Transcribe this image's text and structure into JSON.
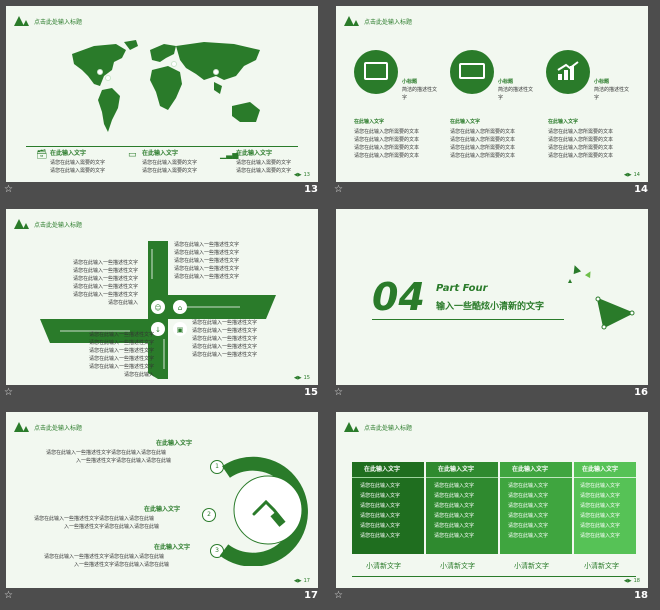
{
  "slide_title": "点击此处输入标题",
  "slides": [
    {
      "num": "13",
      "items": [
        {
          "title": "在此输入文字",
          "line1": "请您在此输入需要的文字",
          "line2": "请您在此输入需要的文字",
          "icon": "id-card-icon"
        },
        {
          "title": "在此输入文字",
          "line1": "请您在此输入需要的文字",
          "line2": "请您在此输入需要的文字",
          "icon": "monitor-icon"
        },
        {
          "title": "在此输入文字",
          "line1": "请您在此输入需要的文字",
          "line2": "请您在此输入需要的文字",
          "icon": "bar-chart-icon"
        }
      ],
      "foot": "13"
    },
    {
      "num": "14",
      "circles": [
        {
          "label": "小标题",
          "desc": "简洁的描述性文字",
          "icon": "book-search-icon"
        },
        {
          "label": "小标题",
          "desc": "简洁的描述性文字",
          "icon": "certificate-icon"
        },
        {
          "label": "小标题",
          "desc": "简洁的描述性文字",
          "icon": "growth-chart-icon"
        }
      ],
      "cols": [
        {
          "title": "在此输入文字",
          "lines": [
            "请您在此输入您所需要的文本",
            "请您在此输入您所需要的文本",
            "请您在此输入您所需要的文本",
            "请您在此输入您所需要的文本"
          ]
        },
        {
          "title": "在此输入文字",
          "lines": [
            "请您在此输入您所需要的文本",
            "请您在此输入您所需要的文本",
            "请您在此输入您所需要的文本",
            "请您在此输入您所需要的文本"
          ]
        },
        {
          "title": "在此输入文字",
          "lines": [
            "请您在此输入您所需要的文本",
            "请您在此输入您所需要的文本",
            "请您在此输入您所需要的文本",
            "请您在此输入您所需要的文本"
          ]
        }
      ],
      "foot": "14"
    },
    {
      "num": "15",
      "tl": [
        "请您在此输入一些描述性文字",
        "请您在此输入一些描述性文字",
        "请您在此输入一些描述性文字",
        "请您在此输入一些描述性文字",
        "请您在此输入一些描述性文字",
        "请您在此输入"
      ],
      "tr": [
        "请您在此输入一些描述性文字",
        "请您在此输入一些描述性文字",
        "请您在此输入一些描述性文字",
        "请您在此输入一些描述性文字",
        "请您在此输入一些描述性文字"
      ],
      "bl": [
        "请您在此输入一些描述性文字",
        "请您在此输入一些描述性文字",
        "请您在此输入一些描述性文字",
        "请您在此输入一些描述性文字",
        "请您在此输入一些描述性文字",
        "请您在此输入"
      ],
      "br": [
        "请您在此输入一些描述性文字",
        "请您在此输入一些描述性文字",
        "请您在此输入一些描述性文字",
        "请您在此输入一些描述性文字",
        "请您在此输入一些描述性文字"
      ],
      "foot": "15"
    },
    {
      "num": "16",
      "big": "04",
      "part": "Part Four",
      "sub": "输入一些酷炫小清新的文字"
    },
    {
      "num": "17",
      "blocks": [
        {
          "title": "在此输入文字",
          "lines": [
            "请您在此输入一些描述性文字请您在此输入请您在此输",
            "入一些描述性文字请您在此输入请您在此输"
          ],
          "n": "1"
        },
        {
          "title": "在此输入文字",
          "lines": [
            "请您在此输入一些描述性文字请您在此输入请您在此输",
            "入一些描述性文字请您在此输入请您在此输"
          ],
          "n": "2"
        },
        {
          "title": "在此输入文字",
          "lines": [
            "请您在此输入一些描述性文字请您在此输入请您在此输",
            "入一些描述性文字请您在此输入请您在此输"
          ],
          "n": "3"
        }
      ],
      "foot": "17"
    },
    {
      "num": "18",
      "cols": [
        {
          "title": "在此输入文字",
          "lines": [
            "请您在此输入文字",
            "请您在此输入文字",
            "请您在此输入文字",
            "请您在此输入文字",
            "请您在此输入文字",
            "请您在此输入文字"
          ],
          "caption": "小清新文字"
        },
        {
          "title": "在此输入文字",
          "lines": [
            "请您在此输入文字",
            "请您在此输入文字",
            "请您在此输入文字",
            "请您在此输入文字",
            "请您在此输入文字",
            "请您在此输入文字"
          ],
          "caption": "小清新文字"
        },
        {
          "title": "在此输入文字",
          "lines": [
            "请您在此输入文字",
            "请您在此输入文字",
            "请您在此输入文字",
            "请您在此输入文字",
            "请您在此输入文字",
            "请您在此输入文字"
          ],
          "caption": "小清新文字"
        },
        {
          "title": "在此输入文字",
          "lines": [
            "请您在此输入文字",
            "请您在此输入文字",
            "请您在此输入文字",
            "请您在此输入文字",
            "请您在此输入文字",
            "请您在此输入文字"
          ],
          "caption": "小清新文字"
        }
      ],
      "foot": "18"
    }
  ],
  "colors": {
    "primary": "#2a7b2a",
    "background": "#4d4d4d",
    "slide_bg": "#f2f8f0"
  }
}
